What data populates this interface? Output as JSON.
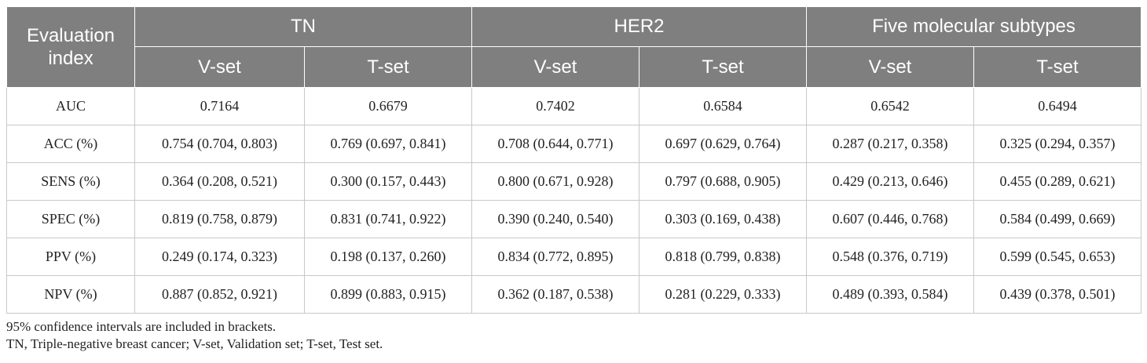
{
  "table": {
    "row_header": "Evaluation index",
    "groups": [
      "TN",
      "HER2",
      "Five molecular subtypes"
    ],
    "sub_headers": [
      "V-set",
      "T-set",
      "V-set",
      "T-set",
      "V-set",
      "T-set"
    ],
    "rows": [
      {
        "label": "AUC",
        "values": [
          "0.7164",
          "0.6679",
          "0.7402",
          "0.6584",
          "0.6542",
          "0.6494"
        ]
      },
      {
        "label": "ACC (%)",
        "values": [
          "0.754 (0.704, 0.803)",
          "0.769 (0.697, 0.841)",
          "0.708 (0.644, 0.771)",
          "0.697 (0.629, 0.764)",
          "0.287 (0.217, 0.358)",
          "0.325 (0.294, 0.357)"
        ]
      },
      {
        "label": "SENS (%)",
        "values": [
          "0.364 (0.208, 0.521)",
          "0.300 (0.157, 0.443)",
          "0.800 (0.671, 0.928)",
          "0.797 (0.688, 0.905)",
          "0.429 (0.213, 0.646)",
          "0.455 (0.289, 0.621)"
        ]
      },
      {
        "label": "SPEC (%)",
        "values": [
          "0.819 (0.758, 0.879)",
          "0.831 (0.741, 0.922)",
          "0.390 (0.240, 0.540)",
          "0.303 (0.169, 0.438)",
          "0.607 (0.446, 0.768)",
          "0.584 (0.499, 0.669)"
        ]
      },
      {
        "label": "PPV (%)",
        "values": [
          "0.249 (0.174, 0.323)",
          "0.198 (0.137, 0.260)",
          "0.834 (0.772, 0.895)",
          "0.818 (0.799, 0.838)",
          "0.548 (0.376, 0.719)",
          "0.599 (0.545, 0.653)"
        ]
      },
      {
        "label": "NPV (%)",
        "values": [
          "0.887 (0.852, 0.921)",
          "0.899 (0.883, 0.915)",
          "0.362 (0.187, 0.538)",
          "0.281 (0.229, 0.333)",
          "0.489 (0.393, 0.584)",
          "0.439 (0.378, 0.501)"
        ]
      }
    ]
  },
  "footnotes": [
    "95% confidence intervals are included in brackets.",
    "TN, Triple-negative breast cancer; V-set, Validation set; T-set, Test set."
  ]
}
